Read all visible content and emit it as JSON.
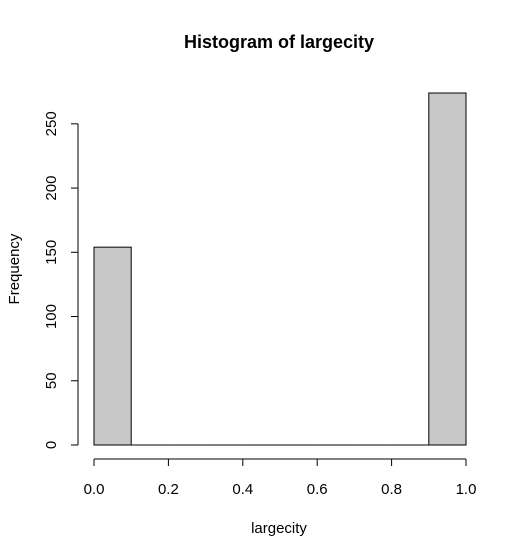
{
  "chart_data": {
    "type": "bar",
    "title": "Histogram of largecity",
    "xlabel": "largecity",
    "ylabel": "Frequency",
    "bins": [
      {
        "start": 0.0,
        "end": 0.1,
        "count": 154
      },
      {
        "start": 0.1,
        "end": 0.2,
        "count": 0
      },
      {
        "start": 0.2,
        "end": 0.3,
        "count": 0
      },
      {
        "start": 0.3,
        "end": 0.4,
        "count": 0
      },
      {
        "start": 0.4,
        "end": 0.5,
        "count": 0
      },
      {
        "start": 0.5,
        "end": 0.6,
        "count": 0
      },
      {
        "start": 0.6,
        "end": 0.7,
        "count": 0
      },
      {
        "start": 0.7,
        "end": 0.8,
        "count": 0
      },
      {
        "start": 0.8,
        "end": 0.9,
        "count": 0
      },
      {
        "start": 0.9,
        "end": 1.0,
        "count": 274
      }
    ],
    "xticks": [
      "0.0",
      "0.2",
      "0.4",
      "0.6",
      "0.8",
      "1.0"
    ],
    "yticks": [
      "0",
      "50",
      "100",
      "150",
      "200",
      "250"
    ],
    "xlim": [
      0,
      1
    ],
    "ylim": [
      0,
      274
    ],
    "bar_color": "#c8c8c8",
    "edge_color": "#000000",
    "grid": false
  }
}
